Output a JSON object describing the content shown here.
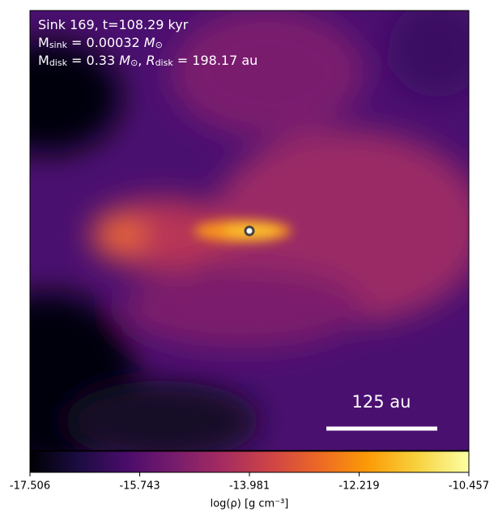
{
  "chart_data": {
    "type": "image",
    "annotations": [
      [
        {
          "text": "Sink 169, t=108.29 kyr"
        }
      ],
      [
        {
          "text": "M"
        },
        {
          "text": "sink",
          "sub": true
        },
        {
          "text": " = 0.00032 "
        },
        {
          "text": "M",
          "italic": true
        },
        {
          "text": "⊙",
          "sub": true
        }
      ],
      [
        {
          "text": "M"
        },
        {
          "text": "disk",
          "sub": true
        },
        {
          "text": " = 0.33 "
        },
        {
          "text": "M",
          "italic": true
        },
        {
          "text": "⊙",
          "sub": true
        },
        {
          "text": ", "
        },
        {
          "text": "R",
          "italic": true
        },
        {
          "text": "disk",
          "sub": true
        },
        {
          "text": " = 198.17 au"
        }
      ]
    ],
    "scale_bar_label": "125 au",
    "colorbar": {
      "label": "log(ρ) [g cm⁻³]",
      "lim": [
        -17.506,
        -10.457
      ],
      "ticks": [
        -17.506,
        -15.743,
        -13.981,
        -12.219,
        -10.457
      ]
    }
  }
}
